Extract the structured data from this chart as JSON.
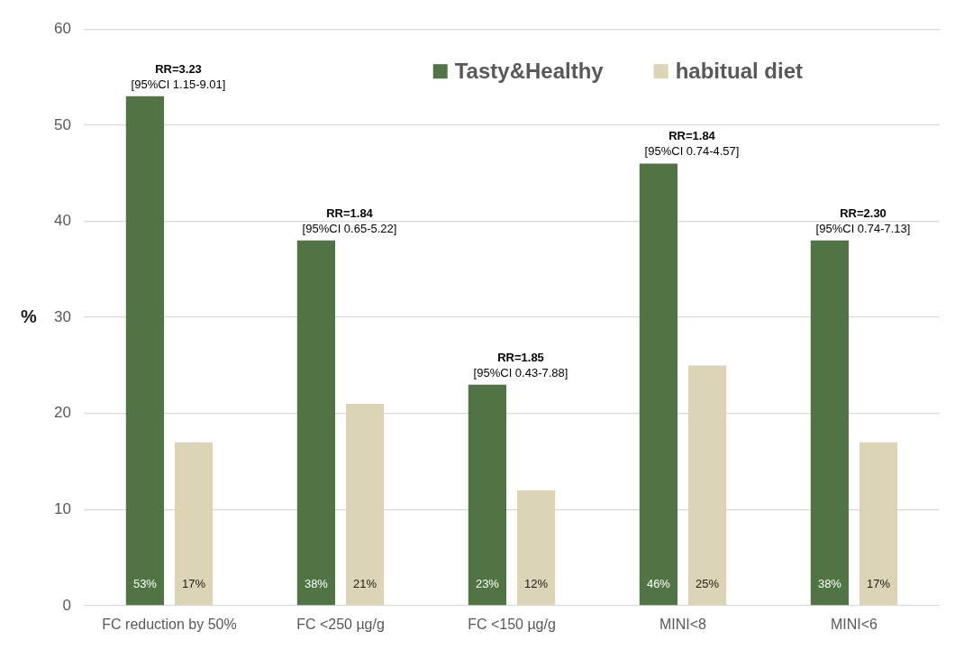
{
  "chart_data": {
    "type": "bar",
    "ylabel": "%",
    "categories": [
      "FC reduction by 50%",
      "FC <250 µg/g",
      "FC <150 µg/g",
      "MINI<8",
      "MINI<6"
    ],
    "series": [
      {
        "name": "Tasty&Healthy",
        "color": "#507444",
        "values": [
          53,
          38,
          23,
          46,
          38
        ],
        "value_labels": [
          "53%",
          "38%",
          "23%",
          "46%",
          "38%"
        ]
      },
      {
        "name": "habitual diet",
        "color": "#dbd4b5",
        "values": [
          17,
          21,
          12,
          25,
          17
        ],
        "value_labels": [
          "17%",
          "21%",
          "12%",
          "25%",
          "17%"
        ]
      }
    ],
    "ylim": [
      0,
      60
    ],
    "yticks": [
      0,
      10,
      20,
      30,
      40,
      50,
      60
    ],
    "grid": "y",
    "legend": "top right",
    "annotations": [
      "RR=3.23",
      "[95%CI 1.15-9.01]",
      "RR=1.84",
      "[95%CI 0.65-5.22]",
      "RR=1.85",
      "[95%CI 0.43-7.88]",
      "RR=1.84",
      "[95%CI 0.74-4.57]",
      "RR=2.30",
      "[95%CI 0.74-7.13]"
    ]
  }
}
